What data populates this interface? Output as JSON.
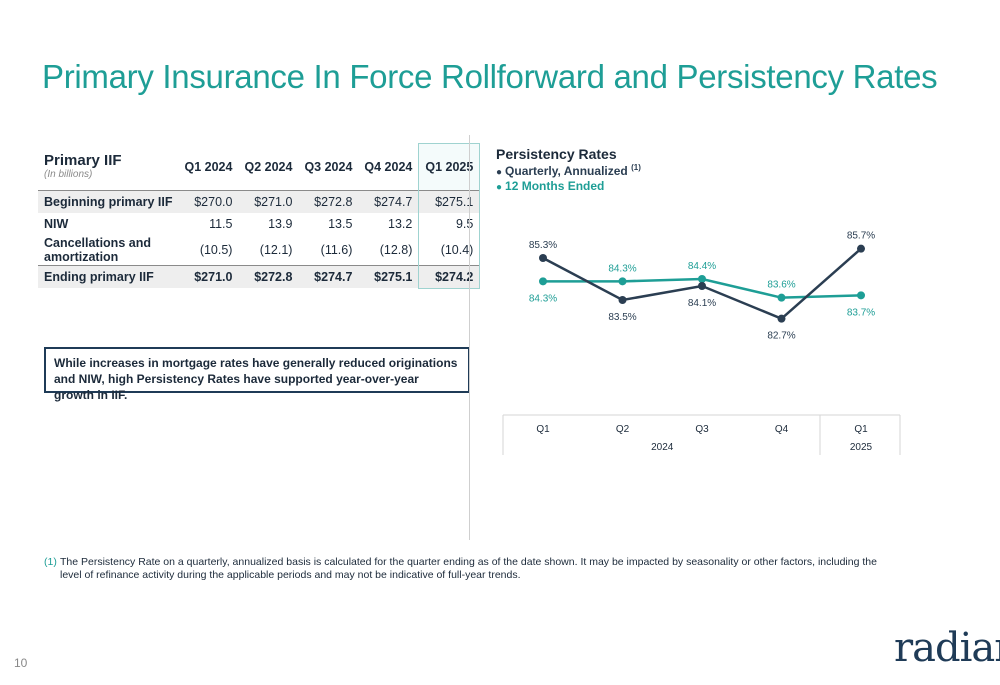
{
  "title": "Primary Insurance In Force Rollforward and Persistency Rates",
  "table": {
    "title": "Primary IIF",
    "subtitle": "(In billions)",
    "columns": [
      "Q1 2024",
      "Q2 2024",
      "Q3 2024",
      "Q4 2024",
      "Q1 2025"
    ],
    "rows": [
      {
        "label": "Beginning primary IIF",
        "values": [
          "$270.0",
          "$271.0",
          "$272.8",
          "$274.7",
          "$275.1"
        ]
      },
      {
        "label": "NIW",
        "values": [
          "11.5",
          "13.9",
          "13.5",
          "13.2",
          "9.5"
        ]
      },
      {
        "label": "Cancellations and amortization",
        "values": [
          "(10.5)",
          "(12.1)",
          "(11.6)",
          "(12.8)",
          "(10.4)"
        ]
      },
      {
        "label": "Ending primary IIF",
        "values": [
          "$271.0",
          "$272.8",
          "$274.7",
          "$275.1",
          "$274.2"
        ]
      }
    ]
  },
  "callout": "While increases in mortgage rates have generally reduced originations and NIW, high Persistency Rates have supported year-over-year growth in IIF.",
  "chart_data": {
    "type": "line",
    "title": "Persistency Rates",
    "categories": [
      "Q1",
      "Q2",
      "Q3",
      "Q4",
      "Q1"
    ],
    "category_groups": [
      {
        "label": "2024",
        "span": 4
      },
      {
        "label": "2025",
        "span": 1
      }
    ],
    "series": [
      {
        "name": "Quarterly, Annualized",
        "note": "(1)",
        "color": "#2b3e52",
        "values": [
          85.3,
          83.5,
          84.1,
          82.7,
          85.7
        ],
        "labels": [
          "85.3%",
          "83.5%",
          "84.1%",
          "82.7%",
          "85.7%"
        ]
      },
      {
        "name": "12 Months Ended",
        "color": "#1e9e96",
        "values": [
          84.3,
          84.3,
          84.4,
          83.6,
          83.7
        ],
        "labels": [
          "84.3%",
          "84.3%",
          "84.4%",
          "83.6%",
          "83.7%"
        ]
      }
    ],
    "ylim": [
      82.0,
      86.5
    ],
    "grid": false,
    "legend": "top-left"
  },
  "footnote": {
    "mark": "(1)",
    "text": "The Persistency Rate on a quarterly, annualized basis is calculated for the quarter ending as of the date shown. It may be impacted by seasonality or other factors, including the level of refinance activity during the applicable periods and may not be indicative of full-year trends."
  },
  "page_number": "10",
  "logo_text": "radian",
  "colors": {
    "accent": "#1e9e96",
    "navy": "#2b3e52"
  }
}
